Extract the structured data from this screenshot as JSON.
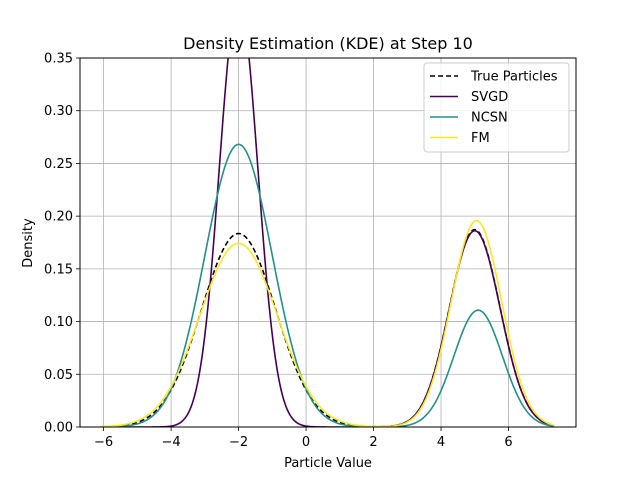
{
  "chart_data": {
    "type": "line",
    "title": "Density Estimation (KDE) at Step 10",
    "xlabel": "Particle Value",
    "ylabel": "Density",
    "xlim": [
      -6.7,
      8.0
    ],
    "ylim": [
      0,
      0.35
    ],
    "x_ticks": [
      -6,
      -4,
      -2,
      0,
      2,
      4,
      6
    ],
    "y_ticks": [
      0.0,
      0.05,
      0.1,
      0.15,
      0.2,
      0.25,
      0.3,
      0.35
    ],
    "x_tick_labels": [
      "−6",
      "−4",
      "−2",
      "0",
      "2",
      "4",
      "6"
    ],
    "y_tick_labels": [
      "0.00",
      "0.05",
      "0.10",
      "0.15",
      "0.20",
      "0.25",
      "0.30",
      "0.35"
    ],
    "grid": true,
    "legend_position": "top-right",
    "x_range": [
      -6.1,
      7.35
    ],
    "series": [
      {
        "name": "True Particles",
        "color": "#000000",
        "dashed": true,
        "components": [
          {
            "mean": -2.0,
            "sd": 1.1,
            "weight": 0.506
          },
          {
            "mean": 5.0,
            "sd": 0.75,
            "weight": 0.352
          }
        ]
      },
      {
        "name": "SVGD",
        "color": "#440154",
        "dashed": false,
        "components": [
          {
            "mean": -2.0,
            "sd": 0.57,
            "weight": 0.58
          },
          {
            "mean": 5.0,
            "sd": 0.75,
            "weight": 0.35
          }
        ]
      },
      {
        "name": "NCSN",
        "color": "#21918c",
        "dashed": false,
        "components": [
          {
            "mean": -2.0,
            "sd": 1.0,
            "weight": 0.672
          },
          {
            "mean": 5.1,
            "sd": 0.72,
            "weight": 0.2
          }
        ]
      },
      {
        "name": "FM",
        "color": "#fde725",
        "dashed": false,
        "components": [
          {
            "mean": -2.0,
            "sd": 1.15,
            "weight": 0.502
          },
          {
            "mean": 5.05,
            "sd": 0.75,
            "weight": 0.368
          }
        ]
      }
    ]
  }
}
